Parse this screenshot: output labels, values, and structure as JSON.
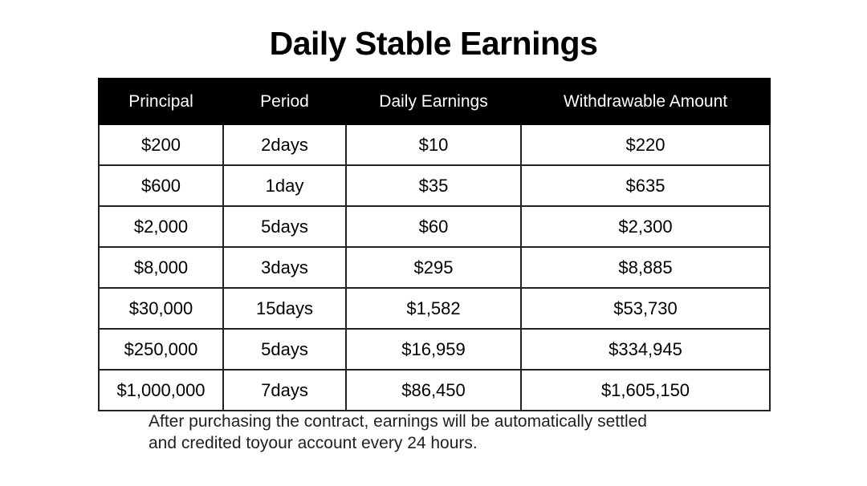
{
  "title": "Daily Stable Earnings",
  "chart_data": {
    "type": "table",
    "title": "Daily Stable Earnings",
    "columns": [
      "Principal",
      "Period",
      "Daily Earnings",
      "Withdrawable Amount"
    ],
    "rows": [
      [
        "$200",
        "2days",
        "$10",
        "$220"
      ],
      [
        "$600",
        "1day",
        "$35",
        "$635"
      ],
      [
        "$2,000",
        "5days",
        "$60",
        "$2,300"
      ],
      [
        "$8,000",
        "3days",
        "$295",
        "$8,885"
      ],
      [
        "$30,000",
        "15days",
        "$1,582",
        "$53,730"
      ],
      [
        "$250,000",
        "5days",
        "$16,959",
        "$334,945"
      ],
      [
        "$1,000,000",
        "7days",
        "$86,450",
        "$1,605,150"
      ]
    ],
    "layout": {
      "header_bg": "#000000",
      "header_text_color": "#ffffff",
      "border_color": "#222222",
      "grid": true
    }
  },
  "footer": {
    "line1": "After purchasing the contract, earnings will be automatically settled",
    "line2": "and credited toyour account every 24 hours."
  },
  "colors": {
    "background": "#ffffff",
    "header_bg": "#000000",
    "header_text": "#ffffff",
    "body_text": "#000000",
    "footer_text": "#212121"
  }
}
